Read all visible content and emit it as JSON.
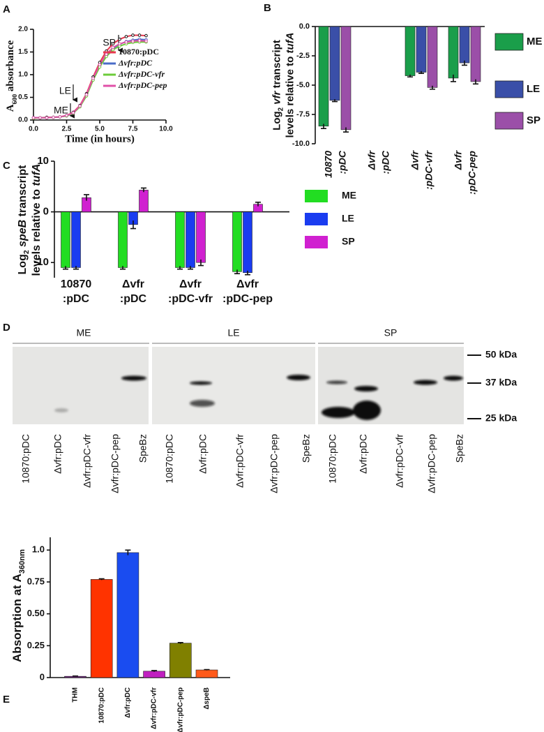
{
  "chart_data": [
    {
      "type": "line",
      "panel": "A",
      "x": [
        0,
        0.5,
        1,
        1.5,
        2,
        2.5,
        3,
        3.5,
        4,
        4.5,
        5,
        5.5,
        6,
        6.5,
        7,
        7.5,
        8,
        8.5
      ],
      "series": [
        {
          "name": "10870:pDC",
          "color": "#e8384f",
          "values": [
            0.05,
            0.05,
            0.06,
            0.06,
            0.07,
            0.1,
            0.17,
            0.32,
            0.58,
            0.95,
            1.27,
            1.52,
            1.68,
            1.78,
            1.84,
            1.87,
            1.87,
            1.86
          ]
        },
        {
          "name": "Δvfr:pDC",
          "color": "#4a6cc8",
          "values": [
            0.05,
            0.05,
            0.05,
            0.06,
            0.07,
            0.09,
            0.15,
            0.3,
            0.55,
            0.9,
            1.2,
            1.43,
            1.58,
            1.67,
            1.73,
            1.76,
            1.78,
            1.77
          ]
        },
        {
          "name": "Δvfr:pDC-vfr",
          "color": "#6ccc3a",
          "values": [
            0.04,
            0.05,
            0.05,
            0.06,
            0.07,
            0.09,
            0.15,
            0.29,
            0.53,
            0.88,
            1.17,
            1.4,
            1.55,
            1.63,
            1.68,
            1.71,
            1.72,
            1.72
          ]
        },
        {
          "name": "Δvfr:pDC-pep",
          "color": "#e050a8",
          "values": [
            0.05,
            0.05,
            0.05,
            0.06,
            0.07,
            0.1,
            0.16,
            0.31,
            0.56,
            0.92,
            1.22,
            1.45,
            1.6,
            1.68,
            1.72,
            1.74,
            1.75,
            1.74
          ]
        }
      ],
      "xlim": [
        0,
        10
      ],
      "xticks": [
        {
          "value": 0,
          "label": "0.0"
        },
        2.5,
        {
          "value": 5,
          "label": "5.0"
        },
        7.5,
        {
          "value": 10,
          "label": "10.0"
        }
      ],
      "ylim": [
        0,
        2
      ],
      "yticks": [
        {
          "value": 0,
          "label": "0.0"
        },
        0.5,
        {
          "value": 1,
          "label": "1.0"
        },
        1.5,
        {
          "value": 2,
          "label": "2.0"
        }
      ],
      "x_label": "Time (in hours)",
      "y_label": [
        [
          {
            "text": "A"
          },
          {
            "text": "600",
            "sub": true
          },
          {
            "text": " absorbance"
          }
        ]
      ],
      "annotations": [
        "ME",
        "LE",
        "SP"
      ]
    },
    {
      "type": "bar",
      "panel": "B",
      "categories": [
        [
          "10870",
          ":pDC"
        ],
        [
          "Δvfr",
          ":pDC"
        ],
        [
          "Δvfr",
          ":pDC-vfr"
        ],
        [
          "Δvfr",
          ":pDC-pep"
        ]
      ],
      "series": [
        {
          "name": "ME",
          "color": "#1a9e4a",
          "values": [
            -8.5,
            null,
            -4.2,
            -4.4
          ],
          "errors": [
            0.2,
            null,
            0.1,
            0.3
          ]
        },
        {
          "name": "LE",
          "color": "#3a4fa8",
          "values": [
            -6.3,
            null,
            -3.9,
            -3.1
          ],
          "errors": [
            0.1,
            null,
            0.1,
            0.2
          ]
        },
        {
          "name": "SP",
          "color": "#9b4fa8",
          "values": [
            -8.8,
            null,
            -5.2,
            -4.7
          ],
          "errors": [
            0.2,
            null,
            0.15,
            0.2
          ]
        }
      ],
      "ylim": [
        -10,
        0
      ],
      "yticks": [
        {
          "value": -10,
          "label": "-10.0"
        },
        -7.5,
        {
          "value": -5,
          "label": "-5.0"
        },
        -2.5,
        {
          "value": 0,
          "label": "0.0"
        }
      ],
      "y_label": [
        [
          {
            "text": "Log"
          },
          {
            "text": "2",
            "sub": true
          },
          {
            "text": " "
          },
          {
            "text": "vfr",
            "italic": true
          },
          {
            "text": " transcript"
          }
        ],
        [
          {
            "text": "levels relative to "
          },
          {
            "text": "tufA",
            "italic": true
          }
        ]
      ]
    },
    {
      "type": "bar",
      "panel": "C",
      "categories": [
        [
          "10870",
          ":pDC"
        ],
        [
          "Δvfr",
          ":pDC"
        ],
        [
          "Δvfr",
          ":pDC-vfr"
        ],
        [
          "Δvfr",
          ":pDC-pep"
        ]
      ],
      "series": [
        {
          "name": "ME",
          "color": "#22dd22",
          "values": [
            -11,
            -11,
            -11,
            -11.8
          ],
          "errors": [
            0.3,
            0.3,
            0.3,
            0.4
          ]
        },
        {
          "name": "LE",
          "color": "#1a3cf0",
          "values": [
            -11,
            -2.5,
            -11,
            -12
          ],
          "errors": [
            0.3,
            0.8,
            0.3,
            0.4
          ]
        },
        {
          "name": "SP",
          "color": "#d020d0",
          "values": [
            2.8,
            4.3,
            -10,
            1.5
          ],
          "errors": [
            0.6,
            0.4,
            0.6,
            0.4
          ]
        }
      ],
      "ylim": [
        -13,
        10
      ],
      "yticks": [
        -10,
        0,
        10
      ],
      "y_label": [
        [
          {
            "text": "Log"
          },
          {
            "text": "2",
            "sub": true
          },
          {
            "text": " "
          },
          {
            "text": "speB",
            "italic": true
          },
          {
            "text": " transcript"
          }
        ],
        [
          {
            "text": "levels relative to "
          },
          {
            "text": "tufA",
            "italic": true
          }
        ]
      ]
    },
    {
      "type": "bar",
      "panel": "E",
      "categories": [
        "THM",
        "10870:pDC",
        "Δvfr:pDC",
        "Δvfr:pDC-vfr",
        "Δvfr:pDC-pep",
        "ΔspeB"
      ],
      "values": [
        0.01,
        0.77,
        0.98,
        0.05,
        0.27,
        0.06
      ],
      "errors": [
        0.002,
        0.005,
        0.02,
        0.005,
        0.005,
        0.003
      ],
      "colors": [
        "#7a2a8a",
        "#ff3300",
        "#1a4cf0",
        "#c020c0",
        "#808000",
        "#ff5a1a"
      ],
      "ylim": [
        0,
        1.1
      ],
      "yticks": [
        0,
        0.25,
        {
          "value": 0.5,
          "label": "0.50"
        },
        0.75,
        {
          "value": 1,
          "label": "1.0"
        }
      ],
      "y_label": [
        [
          {
            "text": "Absorption at A"
          },
          {
            "text": "360nm",
            "sub": true
          }
        ]
      ]
    }
  ],
  "blot": {
    "panel": "D",
    "groups": [
      "ME",
      "LE",
      "SP"
    ],
    "lanes": [
      "10870:pDC",
      "Δvfr:pDC",
      "Δvfr:pDC-vfr",
      "Δvfr:pDC-pep",
      "SpeBz"
    ],
    "markers": [
      "50 kDa",
      "37 kDa",
      "25 kDa"
    ]
  }
}
